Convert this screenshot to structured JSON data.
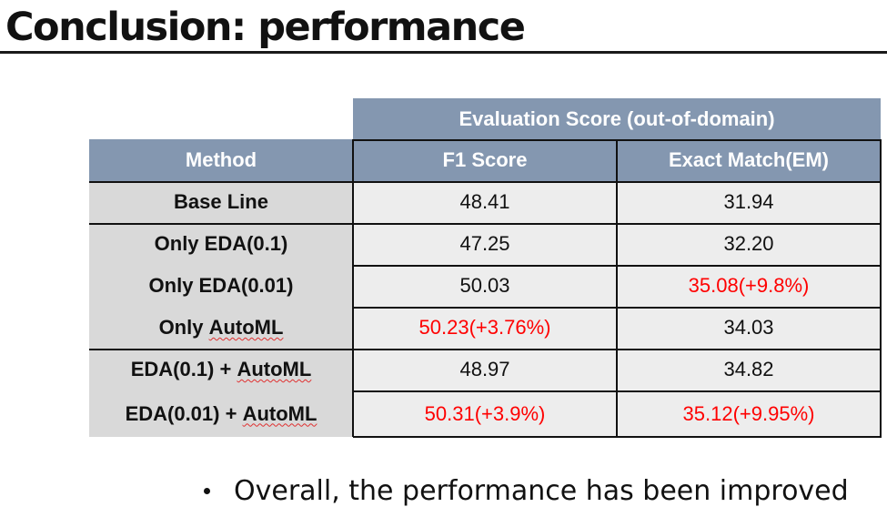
{
  "slide": {
    "title": "Conclusion: performance"
  },
  "table": {
    "group_header": "Evaluation Score (out-of-domain)",
    "columns": [
      "Method",
      "F1 Score",
      "Exact Match(EM)"
    ],
    "rows": [
      {
        "method": "Base Line",
        "f1": "48.41",
        "em": "31.94",
        "f1_highlight": false,
        "em_highlight": false
      },
      {
        "method": "Only EDA(0.1)",
        "f1": "47.25",
        "em": "32.20",
        "f1_highlight": false,
        "em_highlight": false
      },
      {
        "method": "Only EDA(0.01)",
        "f1": "50.03",
        "em": "35.08(+9.8%)",
        "f1_highlight": false,
        "em_highlight": true
      },
      {
        "method_prefix": "Only ",
        "method_suffix": "AutoML",
        "f1": "50.23(+3.76%)",
        "em": "34.03",
        "f1_highlight": true,
        "em_highlight": false
      },
      {
        "method_prefix": "EDA(0.1) + ",
        "method_suffix": "AutoML",
        "f1": "48.97",
        "em": "34.82",
        "f1_highlight": false,
        "em_highlight": false
      },
      {
        "method_prefix": "EDA(0.01) + ",
        "method_suffix": "AutoML",
        "f1": "50.31(+3.9%)",
        "em": "35.12(+9.95%)",
        "f1_highlight": true,
        "em_highlight": true
      }
    ]
  },
  "bullets": [
    "Overall, the performance has been improved"
  ],
  "colors": {
    "header_fill": "#8497b0",
    "method_fill": "#d9d9d9",
    "value_fill": "#ededed",
    "highlight_text": "#ff0000"
  }
}
